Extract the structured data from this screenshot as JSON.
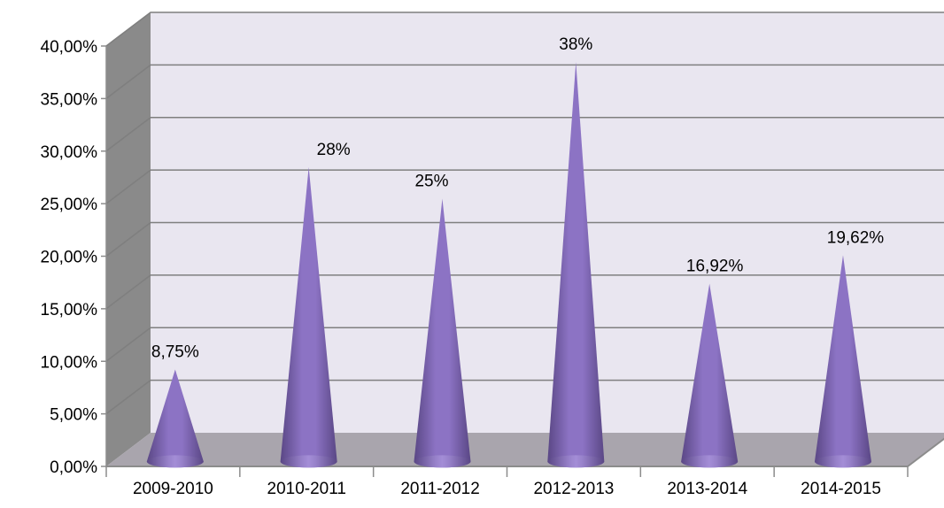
{
  "chart_data": {
    "type": "bar",
    "bar_shape": "cone",
    "categories": [
      "2009-2010",
      "2010-2011",
      "2011-2012",
      "2012-2013",
      "2013-2014",
      "2014-2015"
    ],
    "values": [
      8.75,
      28,
      25,
      38,
      16.92,
      19.62
    ],
    "data_labels": [
      "8,75%",
      "28%",
      "25%",
      "38%",
      "16,92%",
      "19,62%"
    ],
    "ylim": [
      0,
      40
    ],
    "y_ticks": [
      0,
      5,
      10,
      15,
      20,
      25,
      30,
      35,
      40
    ],
    "y_tick_labels": [
      "0,00%",
      "5,00%",
      "10,00%",
      "15,00%",
      "20,00%",
      "25,00%",
      "30,00%",
      "35,00%",
      "40,00%"
    ],
    "grid": true,
    "legend": "none",
    "colors": {
      "cone_dark": "#5a4785",
      "cone_mid": "#8c73c4",
      "cone_light": "#b7a3e6",
      "back_wall": "#e9e6f0",
      "side_wall": "#8a8a8a",
      "floor": "#a9a5ad",
      "grid": "#7f7f7f"
    }
  }
}
